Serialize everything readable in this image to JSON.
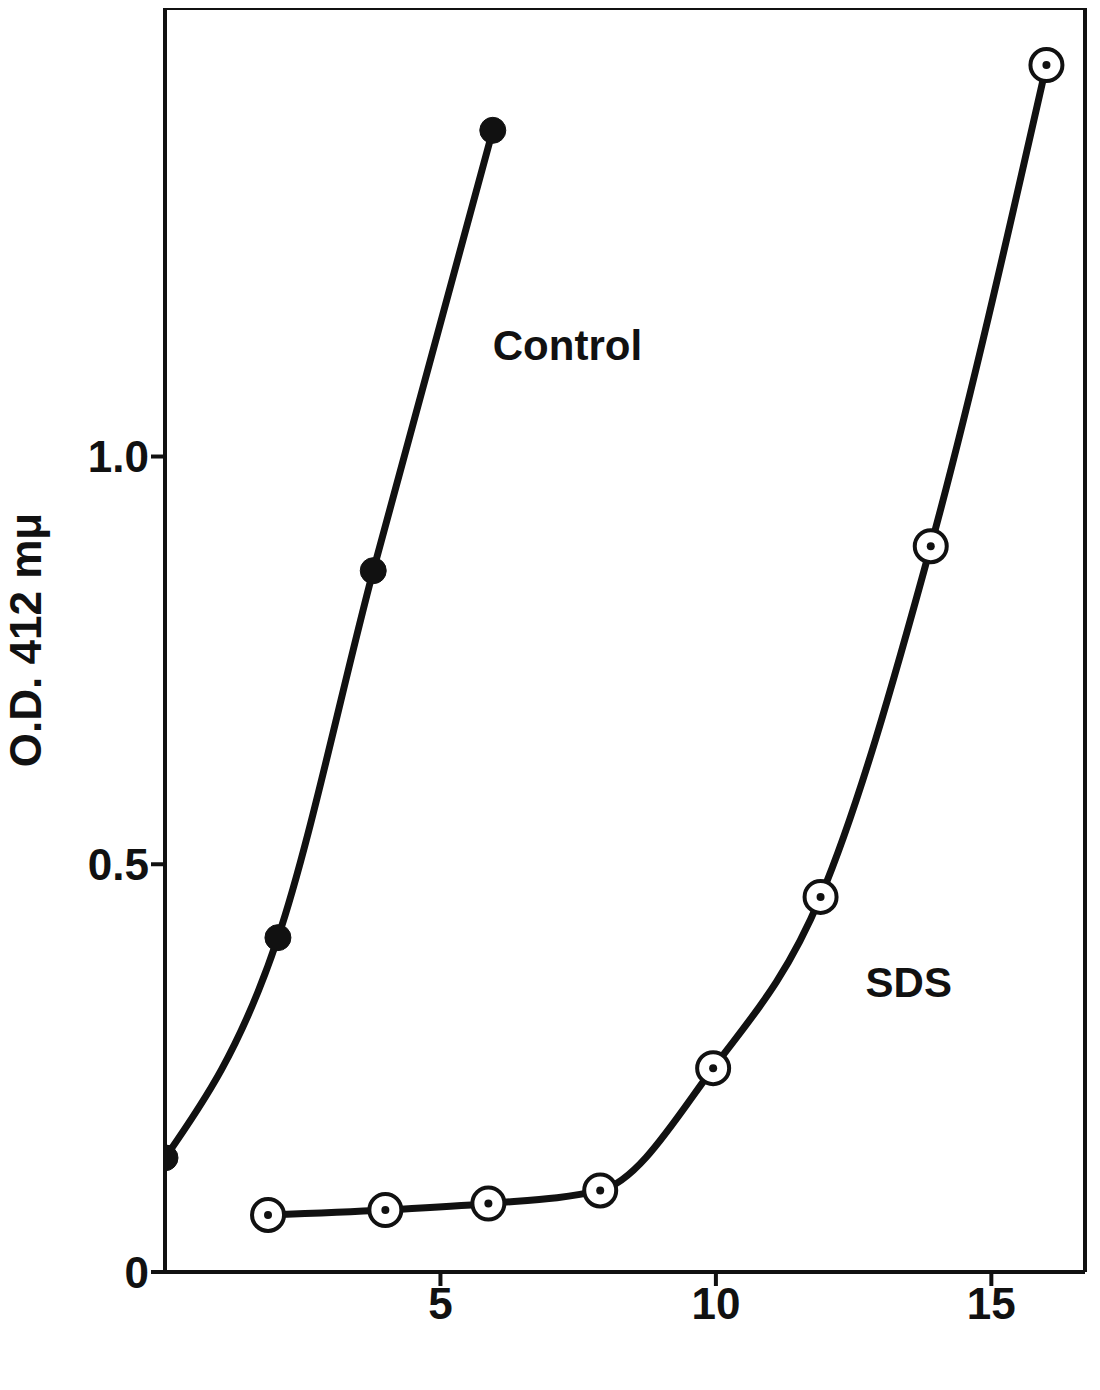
{
  "chart_data": {
    "type": "line",
    "y_label": "O.D. 412 mμ",
    "xlim": [
      0,
      16.7
    ],
    "xticks": [
      5,
      10,
      15
    ],
    "ylim": [
      0,
      1.55
    ],
    "yticks": [
      0,
      0.5,
      {
        "value": 1,
        "label": "1.0"
      }
    ],
    "grid": false,
    "series": [
      {
        "name": "Control",
        "color": "#111111",
        "marker": "filled_circle",
        "x": [
          0,
          2.05,
          3.78,
          5.95
        ],
        "values": [
          0.14,
          0.41,
          0.86,
          1.4
        ]
      },
      {
        "name": "SDS",
        "color": "#111111",
        "marker": "dotted_circle",
        "x": [
          1.87,
          4.0,
          5.87,
          7.9,
          9.95,
          11.9,
          13.9,
          16.0
        ],
        "values": [
          0.07,
          0.076,
          0.084,
          0.1,
          0.25,
          0.46,
          0.89,
          1.48
        ]
      }
    ]
  }
}
